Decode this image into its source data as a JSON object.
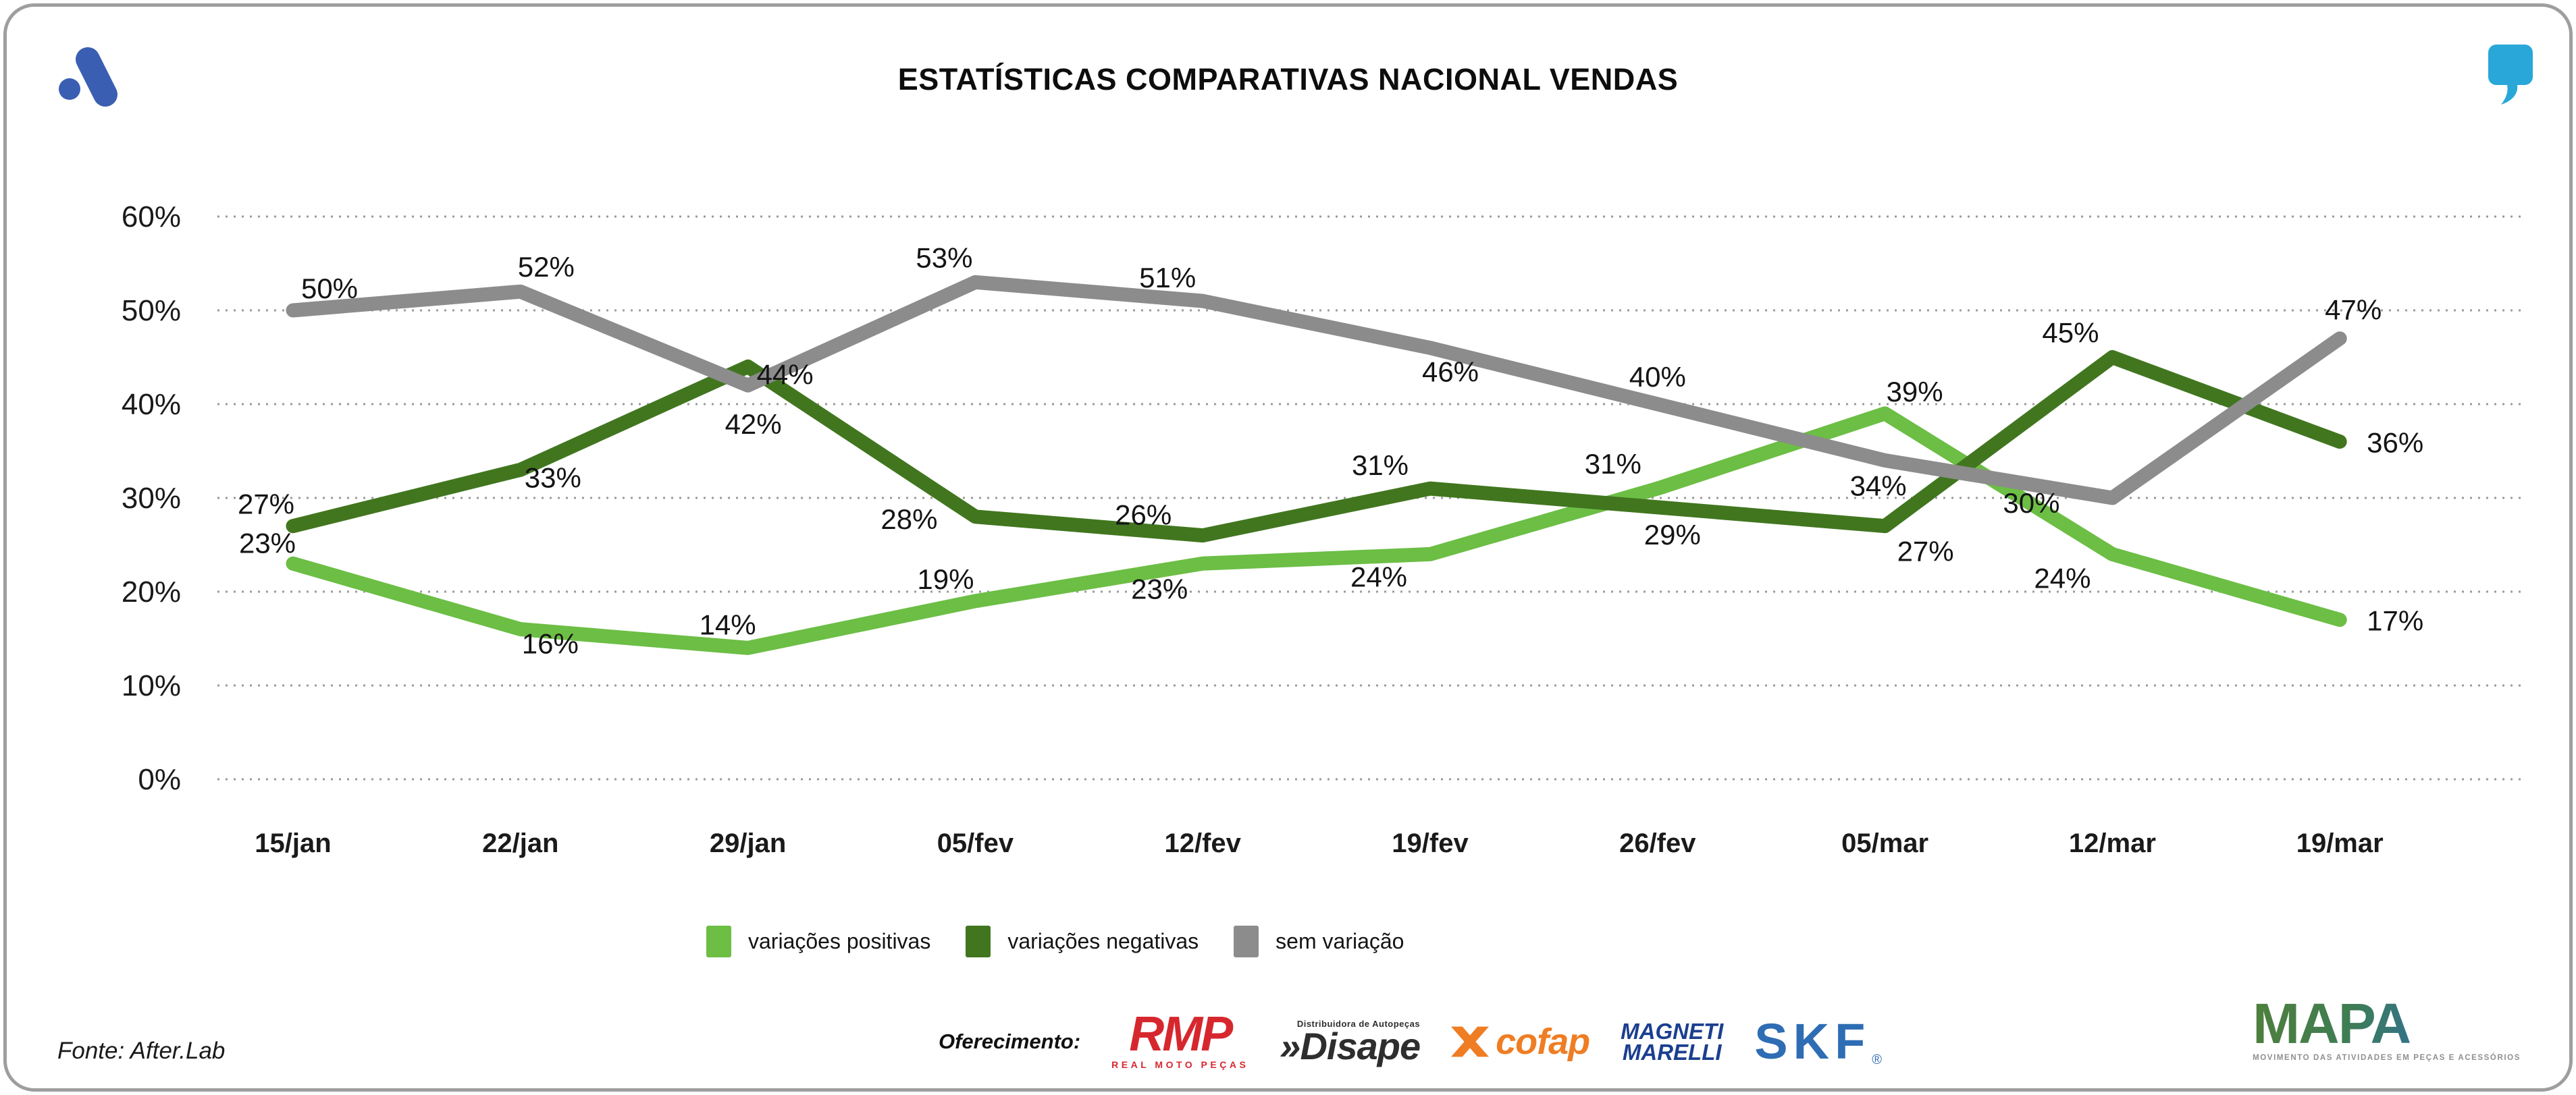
{
  "chart_data": {
    "type": "line",
    "title": "ESTATÍSTICAS COMPARATIVAS NACIONAL VENDAS",
    "categories": [
      "15/jan",
      "22/jan",
      "29/jan",
      "05/fev",
      "12/fev",
      "19/fev",
      "26/fev",
      "05/mar",
      "12/mar",
      "19/mar"
    ],
    "series": [
      {
        "name": "variações positivas",
        "color": "#6CBE45",
        "values": [
          23,
          16,
          14,
          19,
          23,
          24,
          31,
          39,
          24,
          17
        ]
      },
      {
        "name": "variações negativas",
        "color": "#41761F",
        "values": [
          27,
          33,
          44,
          28,
          26,
          31,
          29,
          27,
          45,
          36
        ]
      },
      {
        "name": "sem variação",
        "color": "#8C8C8C",
        "values": [
          50,
          52,
          42,
          53,
          51,
          46,
          40,
          34,
          30,
          47
        ]
      }
    ],
    "ylim": [
      0,
      60
    ],
    "yticks": [
      0,
      10,
      20,
      30,
      40,
      50,
      60
    ],
    "y_tick_labels": [
      "0%",
      "10%",
      "20%",
      "30%",
      "40%",
      "50%",
      "60%"
    ],
    "value_suffix": "%",
    "grid": "dotted-horizontal",
    "legend_position": "bottom"
  },
  "header": {
    "brand_icon": "afterlab-mark",
    "quote_icon": "quote-comma"
  },
  "footer": {
    "source": "Fonte: After.Lab",
    "offering_label": "Oferecimento:",
    "sponsors": {
      "rmp": {
        "name": "RMP",
        "tagline": "REAL MOTO PEÇAS",
        "color": "#D7272E"
      },
      "disape": {
        "prefix": "»",
        "name": "Disape",
        "tagline": "Distribuidora de Autopeças",
        "color": "#2E2E2E"
      },
      "cofap": {
        "name": "cofap",
        "color": "#EF7D23"
      },
      "magneti": {
        "line1": "MAGNETI",
        "line2": "MARELLI",
        "color": "#1B3F8F"
      },
      "skf": {
        "name": "SKF",
        "reg": "®",
        "color": "#2E6DB4"
      }
    },
    "mapa": {
      "name": "MAPA",
      "subtitle": "MOVIMENTO DAS ATIVIDADES EM PEÇAS E ACESSÓRIOS"
    }
  }
}
